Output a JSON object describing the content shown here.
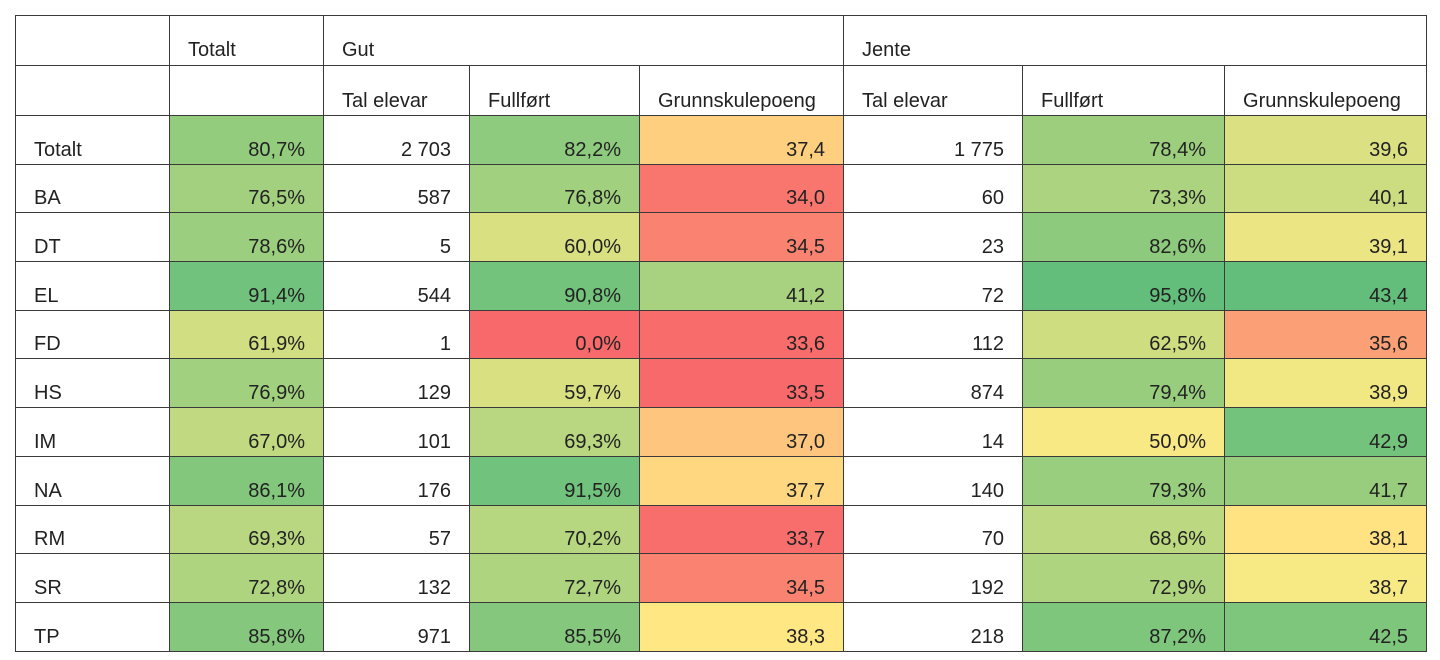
{
  "header": {
    "totalt": "Totalt",
    "gut": "Gut",
    "jente": "Jente",
    "sub": [
      "Tal elevar",
      "Fullført",
      "Grunnskulepoeng"
    ]
  },
  "rows": [
    {
      "label": "Totalt",
      "totalt": "80,7%",
      "gut_tal": "2 703",
      "gut_fullfort": "82,2%",
      "gut_poeng": "37,4",
      "jente_tal": "1 775",
      "jente_fullfort": "78,4%",
      "jente_poeng": "39,6"
    },
    {
      "label": "BA",
      "totalt": "76,5%",
      "gut_tal": "587",
      "gut_fullfort": "76,8%",
      "gut_poeng": "34,0",
      "jente_tal": "60",
      "jente_fullfort": "73,3%",
      "jente_poeng": "40,1"
    },
    {
      "label": "DT",
      "totalt": "78,6%",
      "gut_tal": "5",
      "gut_fullfort": "60,0%",
      "gut_poeng": "34,5",
      "jente_tal": "23",
      "jente_fullfort": "82,6%",
      "jente_poeng": "39,1"
    },
    {
      "label": "EL",
      "totalt": "91,4%",
      "gut_tal": "544",
      "gut_fullfort": "90,8%",
      "gut_poeng": "41,2",
      "jente_tal": "72",
      "jente_fullfort": "95,8%",
      "jente_poeng": "43,4"
    },
    {
      "label": "FD",
      "totalt": "61,9%",
      "gut_tal": "1",
      "gut_fullfort": "0,0%",
      "gut_poeng": "33,6",
      "jente_tal": "112",
      "jente_fullfort": "62,5%",
      "jente_poeng": "35,6"
    },
    {
      "label": "HS",
      "totalt": "76,9%",
      "gut_tal": "129",
      "gut_fullfort": "59,7%",
      "gut_poeng": "33,5",
      "jente_tal": "874",
      "jente_fullfort": "79,4%",
      "jente_poeng": "38,9"
    },
    {
      "label": "IM",
      "totalt": "67,0%",
      "gut_tal": "101",
      "gut_fullfort": "69,3%",
      "gut_poeng": "37,0",
      "jente_tal": "14",
      "jente_fullfort": "50,0%",
      "jente_poeng": "42,9"
    },
    {
      "label": "NA",
      "totalt": "86,1%",
      "gut_tal": "176",
      "gut_fullfort": "91,5%",
      "gut_poeng": "37,7",
      "jente_tal": "140",
      "jente_fullfort": "79,3%",
      "jente_poeng": "41,7"
    },
    {
      "label": "RM",
      "totalt": "69,3%",
      "gut_tal": "57",
      "gut_fullfort": "70,2%",
      "gut_poeng": "33,7",
      "jente_tal": "70",
      "jente_fullfort": "68,6%",
      "jente_poeng": "38,1"
    },
    {
      "label": "SR",
      "totalt": "72,8%",
      "gut_tal": "132",
      "gut_fullfort": "72,7%",
      "gut_poeng": "34,5",
      "jente_tal": "192",
      "jente_fullfort": "72,9%",
      "jente_poeng": "38,7"
    },
    {
      "label": "TP",
      "totalt": "85,8%",
      "gut_tal": "971",
      "gut_fullfort": "85,5%",
      "gut_poeng": "38,3",
      "jente_tal": "218",
      "jente_fullfort": "87,2%",
      "jente_poeng": "42,5"
    }
  ],
  "colors": {
    "red": "#f8696b",
    "yellow": "#ffeb84",
    "green": "#63be7b",
    "border": "#3a3a3a"
  },
  "color_scale_ranges": {
    "percent": [
      0,
      95.8
    ],
    "poeng": [
      33.5,
      43.4
    ]
  }
}
